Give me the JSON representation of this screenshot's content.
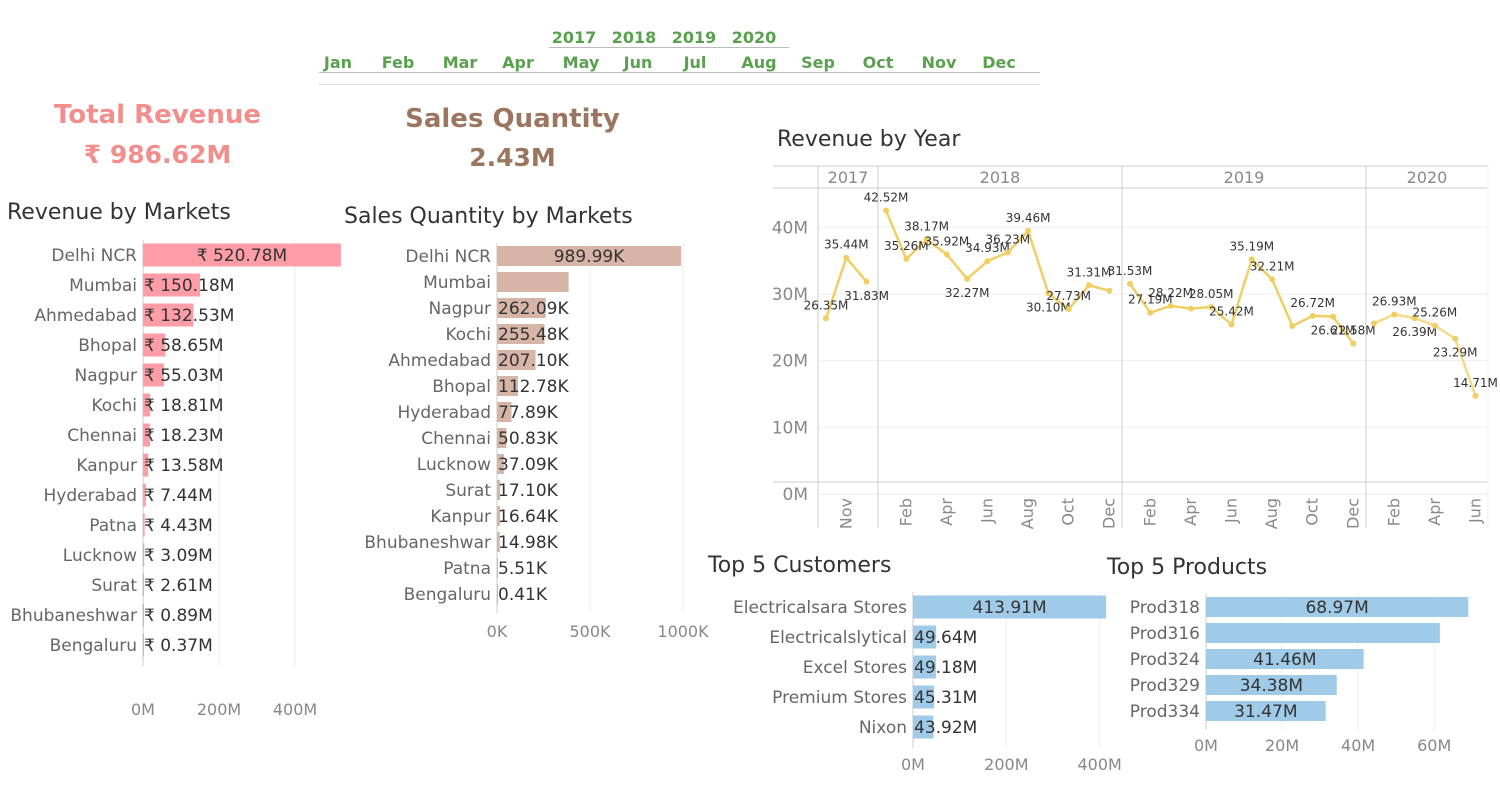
{
  "filters": {
    "years": [
      "2017",
      "2018",
      "2019",
      "2020"
    ],
    "months": [
      "Jan",
      "Feb",
      "Mar",
      "Apr",
      "May",
      "Jun",
      "Jul",
      "Aug",
      "Sep",
      "Oct",
      "Nov",
      "Dec"
    ]
  },
  "kpis": {
    "revenue": {
      "title": "Total Revenue",
      "value": "₹ 986.62M"
    },
    "quantity": {
      "title": "Sales Quantity",
      "value": "2.43M"
    }
  },
  "colors": {
    "revenue_bar": "#ff9da7",
    "quantity_bar": "#d7b5a6",
    "line": "#f1ce63",
    "top5": "#a0cbe8",
    "filter": "#59a14f",
    "kpi_revenue": "#f28e8c",
    "kpi_quantity": "#9c755f"
  },
  "chart_data": [
    {
      "id": "revenue_by_markets",
      "type": "bar",
      "orientation": "horizontal",
      "title": "Revenue by Markets",
      "categories": [
        "Delhi NCR",
        "Mumbai",
        "Ahmedabad",
        "Bhopal",
        "Nagpur",
        "Kochi",
        "Chennai",
        "Kanpur",
        "Hyderabad",
        "Patna",
        "Lucknow",
        "Surat",
        "Bhubaneshwar",
        "Bengaluru"
      ],
      "values": [
        520.78,
        150.18,
        132.53,
        58.65,
        55.03,
        18.81,
        18.23,
        13.58,
        7.44,
        4.43,
        3.09,
        2.61,
        0.89,
        0.37
      ],
      "labels": [
        "₹ 520.78M",
        "₹ 150.18M",
        "₹ 132.53M",
        "₹ 58.65M",
        "₹ 55.03M",
        "₹ 18.81M",
        "₹ 18.23M",
        "₹ 13.58M",
        "₹ 7.44M",
        "₹ 4.43M",
        "₹ 3.09M",
        "₹ 2.61M",
        "₹ 0.89M",
        "₹ 0.37M"
      ],
      "unit": "M",
      "xlim": [
        0,
        550
      ],
      "ticks": [
        0,
        200,
        400
      ],
      "tick_labels": [
        "0M",
        "200M",
        "400M"
      ]
    },
    {
      "id": "quantity_by_markets",
      "type": "bar",
      "orientation": "horizontal",
      "title": "Sales Quantity by Markets",
      "categories": [
        "Delhi NCR",
        "Mumbai",
        "Nagpur",
        "Kochi",
        "Ahmedabad",
        "Bhopal",
        "Hyderabad",
        "Chennai",
        "Lucknow",
        "Surat",
        "Kanpur",
        "Bhubaneshwar",
        "Patna",
        "Bengaluru"
      ],
      "values": [
        989.99,
        385,
        262.09,
        255.48,
        207.1,
        112.78,
        77.89,
        50.83,
        37.09,
        17.1,
        16.64,
        14.98,
        5.51,
        0.41
      ],
      "labels": [
        "989.99K",
        "",
        "262.09K",
        "255.48K",
        "207.10K",
        "112.78K",
        "77.89K",
        "50.83K",
        "37.09K",
        "17.10K",
        "16.64K",
        "14.98K",
        "5.51K",
        "0.41K"
      ],
      "unit": "K",
      "xlim": [
        0,
        1000
      ],
      "ticks": [
        0,
        500,
        1000
      ],
      "tick_labels": [
        "0K",
        "500K",
        "1000K"
      ]
    },
    {
      "id": "revenue_by_year",
      "type": "line",
      "title": "Revenue by Year",
      "ylim": [
        0,
        45
      ],
      "yticks": [
        0,
        10,
        20,
        30,
        40
      ],
      "ytick_labels": [
        "0M",
        "10M",
        "20M",
        "30M",
        "40M"
      ],
      "panels": [
        {
          "year": "2017",
          "months": [
            10,
            11,
            12
          ],
          "values": [
            26.35,
            35.44,
            31.83
          ],
          "labels": [
            "26.35M",
            "35.44M",
            "31.83M"
          ],
          "xticks": [
            {
              "m": 11,
              "label": "Nov"
            }
          ]
        },
        {
          "year": "2018",
          "months": [
            1,
            2,
            3,
            4,
            5,
            6,
            7,
            8,
            9,
            10,
            11,
            12
          ],
          "values": [
            42.52,
            35.26,
            38.17,
            35.92,
            32.27,
            34.93,
            36.23,
            39.46,
            30.1,
            27.73,
            31.31,
            30.5
          ],
          "labels": [
            "42.52M",
            "35.26M",
            "38.17M",
            "35.92M",
            "32.27M",
            "34.93M",
            "36.23M",
            "39.46M",
            "30.10M",
            "27.73M",
            "31.31M",
            ""
          ],
          "xticks": [
            {
              "m": 2,
              "label": "Feb"
            },
            {
              "m": 4,
              "label": "Apr"
            },
            {
              "m": 6,
              "label": "Jun"
            },
            {
              "m": 8,
              "label": "Aug"
            },
            {
              "m": 10,
              "label": "Oct"
            },
            {
              "m": 12,
              "label": "Dec"
            }
          ]
        },
        {
          "year": "2019",
          "months": [
            1,
            2,
            3,
            4,
            5,
            6,
            7,
            8,
            9,
            10,
            11,
            12
          ],
          "values": [
            31.53,
            27.19,
            28.22,
            27.8,
            28.05,
            25.42,
            35.19,
            32.21,
            25.2,
            26.72,
            26.61,
            22.58
          ],
          "labels": [
            "31.53M",
            "27.19M",
            "28.22M",
            "",
            "28.05M",
            "25.42M",
            "35.19M",
            "32.21M",
            "",
            "26.72M",
            "26.61M",
            "22.58M"
          ],
          "xticks": [
            {
              "m": 2,
              "label": "Feb"
            },
            {
              "m": 4,
              "label": "Apr"
            },
            {
              "m": 6,
              "label": "Jun"
            },
            {
              "m": 8,
              "label": "Aug"
            },
            {
              "m": 10,
              "label": "Oct"
            },
            {
              "m": 12,
              "label": "Dec"
            }
          ]
        },
        {
          "year": "2020",
          "months": [
            1,
            2,
            3,
            4,
            5,
            6
          ],
          "values": [
            25.6,
            26.93,
            26.39,
            25.26,
            23.29,
            14.71
          ],
          "labels": [
            "",
            "26.93M",
            "26.39M",
            "25.26M",
            "23.29M",
            "14.71M"
          ],
          "xticks": [
            {
              "m": 2,
              "label": "Feb"
            },
            {
              "m": 4,
              "label": "Apr"
            },
            {
              "m": 6,
              "label": "Jun"
            }
          ]
        }
      ]
    },
    {
      "id": "top5_customers",
      "type": "bar",
      "orientation": "horizontal",
      "title": "Top 5 Customers",
      "categories": [
        "Electricalsara Stores",
        "Electricalslytical",
        "Excel Stores",
        "Premium Stores",
        "Nixon"
      ],
      "values": [
        413.91,
        49.64,
        49.18,
        45.31,
        43.92
      ],
      "labels": [
        "413.91M",
        "49.64M",
        "49.18M",
        "45.31M",
        "43.92M"
      ],
      "unit": "M",
      "xlim": [
        0,
        420
      ],
      "ticks": [
        0,
        200,
        400
      ],
      "tick_labels": [
        "0M",
        "200M",
        "400M"
      ]
    },
    {
      "id": "top5_products",
      "type": "bar",
      "orientation": "horizontal",
      "title": "Top 5 Products",
      "categories": [
        "Prod318",
        "Prod316",
        "Prod324",
        "Prod329",
        "Prod334"
      ],
      "values": [
        68.97,
        61.5,
        41.46,
        34.38,
        31.47
      ],
      "labels": [
        "68.97M",
        "",
        "41.46M",
        "34.38M",
        "31.47M"
      ],
      "unit": "M",
      "xlim": [
        0,
        71
      ],
      "ticks": [
        0,
        20,
        40,
        60
      ],
      "tick_labels": [
        "0M",
        "20M",
        "40M",
        "60M"
      ]
    }
  ]
}
